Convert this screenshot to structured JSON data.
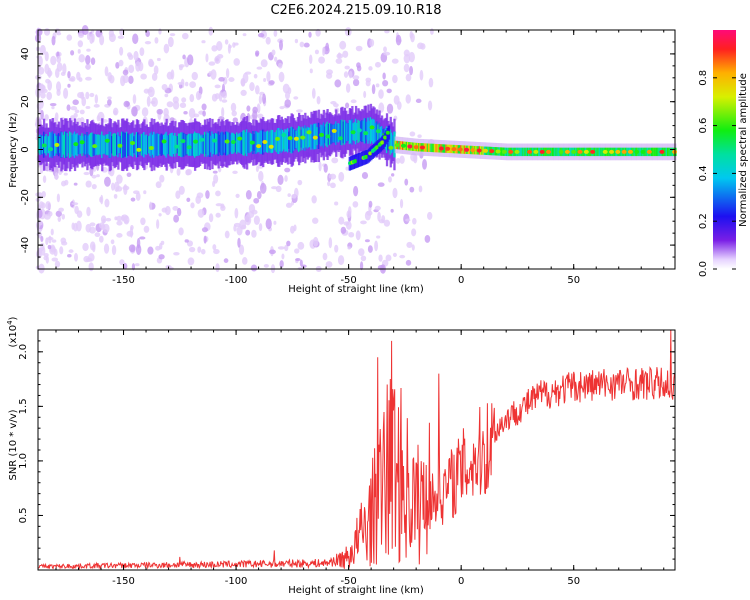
{
  "title": "C2E6.2024.215.09.10.R18",
  "chart_data": [
    {
      "type": "heatmap",
      "xlabel": "Height of straight line (km)",
      "ylabel": "Frequency (Hz)",
      "xlim": [
        -188,
        95
      ],
      "ylim": [
        -50,
        50
      ],
      "xticks": [
        -150,
        -100,
        -50,
        0,
        50
      ],
      "yticks": [
        -40,
        -20,
        0,
        20,
        40
      ],
      "colorbar": {
        "label": "Normalized spectral amplitude",
        "range": [
          0,
          1
        ],
        "ticks": [
          "0.0",
          "0.2",
          "0.4",
          "0.6",
          "0.8"
        ],
        "colormap": "rainbow (white-violet-blue-cyan-green-yellow-red)"
      },
      "ridge": [
        {
          "x": -188,
          "y": 2
        },
        {
          "x": -160,
          "y": 2
        },
        {
          "x": -120,
          "y": 2
        },
        {
          "x": -90,
          "y": 3
        },
        {
          "x": -75,
          "y": 4
        },
        {
          "x": -55,
          "y": 7
        },
        {
          "x": -40,
          "y": 8
        },
        {
          "x": -30,
          "y": 2
        },
        {
          "x": -20,
          "y": 1
        },
        {
          "x": 0,
          "y": 0
        },
        {
          "x": 20,
          "y": -1
        },
        {
          "x": 50,
          "y": -1
        },
        {
          "x": 95,
          "y": -1
        }
      ],
      "secondary_branch": [
        {
          "x": -50,
          "y": -6
        },
        {
          "x": -42,
          "y": -3
        },
        {
          "x": -35,
          "y": 3
        },
        {
          "x": -32,
          "y": 8
        }
      ]
    },
    {
      "type": "line",
      "xlabel": "Height of straight line (km)",
      "ylabel": "SNR (10 * v/v)",
      "multiplier": "(x10",
      "exponent": "4",
      "xlim": [
        -188,
        95
      ],
      "ylim": [
        0,
        2.2
      ],
      "xticks": [
        -150,
        -100,
        -50,
        0,
        50
      ],
      "yticks": [
        "0.5",
        "1.0",
        "1.5",
        "2.0"
      ],
      "color": "#ee3333",
      "envelope": [
        {
          "x": -188,
          "y": 0.03
        },
        {
          "x": -150,
          "y": 0.04
        },
        {
          "x": -100,
          "y": 0.05
        },
        {
          "x": -60,
          "y": 0.06
        },
        {
          "x": -50,
          "y": 0.12
        },
        {
          "x": -40,
          "y": 0.5
        },
        {
          "x": -30,
          "y": 1.0
        },
        {
          "x": -20,
          "y": 0.6
        },
        {
          "x": -10,
          "y": 0.7
        },
        {
          "x": 0,
          "y": 0.95
        },
        {
          "x": 10,
          "y": 1.15
        },
        {
          "x": 20,
          "y": 1.4
        },
        {
          "x": 35,
          "y": 1.62
        },
        {
          "x": 50,
          "y": 1.7
        },
        {
          "x": 70,
          "y": 1.73
        },
        {
          "x": 95,
          "y": 1.72
        }
      ],
      "peaks": [
        {
          "x": -31,
          "y": 2.1
        },
        {
          "x": -33,
          "y": 1.7
        },
        {
          "x": -37,
          "y": 1.95
        },
        {
          "x": -10,
          "y": 1.8
        },
        {
          "x": -14,
          "y": 1.35
        },
        {
          "x": -125,
          "y": 0.12
        },
        {
          "x": -83,
          "y": 0.18
        },
        {
          "x": 93,
          "y": 2.2
        }
      ]
    }
  ]
}
